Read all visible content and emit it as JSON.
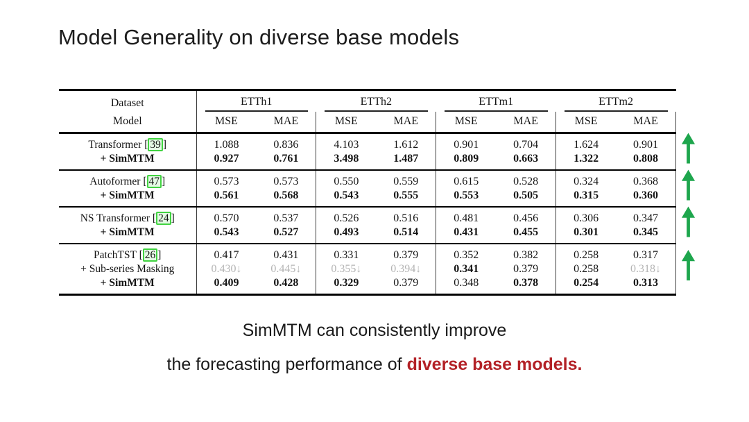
{
  "slide": {
    "title": "Model Generality on diverse base models",
    "caption_line1": "SimMTM can consistently improve",
    "caption_line2_prefix": "the forecasting performance of ",
    "caption_line2_highlight": "diverse base models."
  },
  "colors": {
    "arrow_green": "#1ea64d",
    "cite_box_border_green": "#41d341",
    "cite_box_fill_green": "#e4fae4",
    "caption_highlight_red": "#b32126",
    "worse_value_gray": "#b4b4b4"
  },
  "table": {
    "header": {
      "corner_top": "Dataset",
      "corner_bottom": "Model",
      "dataset_groups": [
        "ETTh1",
        "ETTh2",
        "ETTm1",
        "ETTm2"
      ],
      "metrics": [
        "MSE",
        "MAE"
      ]
    },
    "blocks": [
      {
        "rows": [
          {
            "label": "Transformer",
            "cite": "39",
            "label_bold": false,
            "cells": [
              {
                "v": "1.088",
                "s": "n"
              },
              {
                "v": "0.836",
                "s": "n"
              },
              {
                "v": "4.103",
                "s": "n"
              },
              {
                "v": "1.612",
                "s": "n"
              },
              {
                "v": "0.901",
                "s": "n"
              },
              {
                "v": "0.704",
                "s": "n"
              },
              {
                "v": "1.624",
                "s": "n"
              },
              {
                "v": "0.901",
                "s": "n"
              }
            ]
          },
          {
            "label": "+ SimMTM",
            "cite": null,
            "label_bold": true,
            "cells": [
              {
                "v": "0.927",
                "s": "b"
              },
              {
                "v": "0.761",
                "s": "b"
              },
              {
                "v": "3.498",
                "s": "b"
              },
              {
                "v": "1.487",
                "s": "b"
              },
              {
                "v": "0.809",
                "s": "b"
              },
              {
                "v": "0.663",
                "s": "b"
              },
              {
                "v": "1.322",
                "s": "b"
              },
              {
                "v": "0.808",
                "s": "b"
              }
            ]
          }
        ]
      },
      {
        "rows": [
          {
            "label": "Autoformer",
            "cite": "47",
            "label_bold": false,
            "cells": [
              {
                "v": "0.573",
                "s": "n"
              },
              {
                "v": "0.573",
                "s": "n"
              },
              {
                "v": "0.550",
                "s": "n"
              },
              {
                "v": "0.559",
                "s": "n"
              },
              {
                "v": "0.615",
                "s": "n"
              },
              {
                "v": "0.528",
                "s": "n"
              },
              {
                "v": "0.324",
                "s": "n"
              },
              {
                "v": "0.368",
                "s": "n"
              }
            ]
          },
          {
            "label": "+ SimMTM",
            "cite": null,
            "label_bold": true,
            "cells": [
              {
                "v": "0.561",
                "s": "b"
              },
              {
                "v": "0.568",
                "s": "b"
              },
              {
                "v": "0.543",
                "s": "b"
              },
              {
                "v": "0.555",
                "s": "b"
              },
              {
                "v": "0.553",
                "s": "b"
              },
              {
                "v": "0.505",
                "s": "b"
              },
              {
                "v": "0.315",
                "s": "b"
              },
              {
                "v": "0.360",
                "s": "b"
              }
            ]
          }
        ]
      },
      {
        "rows": [
          {
            "label": "NS Transformer",
            "cite": "24",
            "label_bold": false,
            "cells": [
              {
                "v": "0.570",
                "s": "n"
              },
              {
                "v": "0.537",
                "s": "n"
              },
              {
                "v": "0.526",
                "s": "n"
              },
              {
                "v": "0.516",
                "s": "n"
              },
              {
                "v": "0.481",
                "s": "n"
              },
              {
                "v": "0.456",
                "s": "n"
              },
              {
                "v": "0.306",
                "s": "n"
              },
              {
                "v": "0.347",
                "s": "n"
              }
            ]
          },
          {
            "label": "+ SimMTM",
            "cite": null,
            "label_bold": true,
            "cells": [
              {
                "v": "0.543",
                "s": "b"
              },
              {
                "v": "0.527",
                "s": "b"
              },
              {
                "v": "0.493",
                "s": "b"
              },
              {
                "v": "0.514",
                "s": "b"
              },
              {
                "v": "0.431",
                "s": "b"
              },
              {
                "v": "0.455",
                "s": "b"
              },
              {
                "v": "0.301",
                "s": "b"
              },
              {
                "v": "0.345",
                "s": "b"
              }
            ]
          }
        ]
      },
      {
        "rows": [
          {
            "label": "PatchTST",
            "cite": "26",
            "label_bold": false,
            "cells": [
              {
                "v": "0.417",
                "s": "n"
              },
              {
                "v": "0.431",
                "s": "n"
              },
              {
                "v": "0.331",
                "s": "n"
              },
              {
                "v": "0.379",
                "s": "n"
              },
              {
                "v": "0.352",
                "s": "n"
              },
              {
                "v": "0.382",
                "s": "n"
              },
              {
                "v": "0.258",
                "s": "n"
              },
              {
                "v": "0.317",
                "s": "n"
              }
            ]
          },
          {
            "label": "+ Sub-series Masking",
            "cite": null,
            "label_bold": false,
            "cells": [
              {
                "v": "0.430↓",
                "s": "g"
              },
              {
                "v": "0.445↓",
                "s": "g"
              },
              {
                "v": "0.355↓",
                "s": "g"
              },
              {
                "v": "0.394↓",
                "s": "g"
              },
              {
                "v": "0.341",
                "s": "b"
              },
              {
                "v": "0.379",
                "s": "n"
              },
              {
                "v": "0.258",
                "s": "n"
              },
              {
                "v": "0.318↓",
                "s": "g"
              }
            ]
          },
          {
            "label": "+ SimMTM",
            "cite": null,
            "label_bold": true,
            "cells": [
              {
                "v": "0.409",
                "s": "b"
              },
              {
                "v": "0.428",
                "s": "b"
              },
              {
                "v": "0.329",
                "s": "b"
              },
              {
                "v": "0.379",
                "s": "n"
              },
              {
                "v": "0.348",
                "s": "n"
              },
              {
                "v": "0.378",
                "s": "b"
              },
              {
                "v": "0.254",
                "s": "b"
              },
              {
                "v": "0.313",
                "s": "b"
              }
            ]
          }
        ]
      }
    ]
  }
}
